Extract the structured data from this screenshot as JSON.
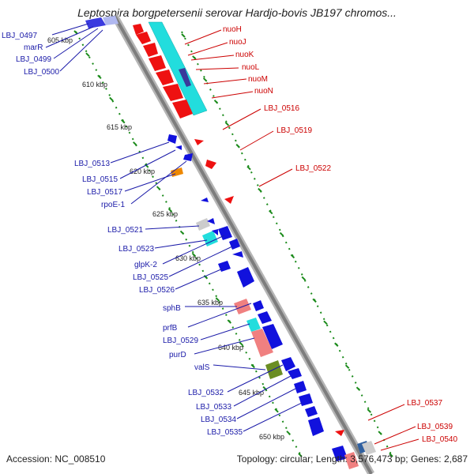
{
  "title": "Leptospira borgpetersenii serovar Hardjo-bovis JB197 chromos...",
  "accession": "Accession: NC_008510",
  "summary": "Topology: circular; Length: 3,576,473 bp; Genes: 2,687",
  "colors": {
    "backbone": "#8c8c8c",
    "label_blue": "#1a1aa8",
    "label_red": "#cc0000",
    "tick_green": "#1a8a1a",
    "feature_blue": "#1111dd",
    "feature_red": "#ee1111",
    "feature_cyan": "#22dddd",
    "feature_orange": "#ee8800",
    "feature_pink": "#f08080",
    "feature_olive": "#6b8e23",
    "feature_gray": "#cccccc"
  },
  "kbp_ticks": [
    "605 kbp",
    "610 kbp",
    "615 kbp",
    "620 kbp",
    "625 kbp",
    "630 kbp",
    "635 kbp",
    "640 kbp",
    "645 kbp",
    "650 kbp"
  ],
  "left_labels": [
    "LBJ_0497",
    "marR",
    "LBJ_0499",
    "LBJ_0500",
    "LBJ_0513",
    "LBJ_0515",
    "LBJ_0517",
    "rpoE-1",
    "LBJ_0521",
    "LBJ_0523",
    "glpK-2",
    "LBJ_0525",
    "LBJ_0526",
    "sphB",
    "prfB",
    "LBJ_0529",
    "purD",
    "valS",
    "LBJ_0532",
    "LBJ_0533",
    "LBJ_0534",
    "LBJ_0535"
  ],
  "right_labels": [
    "nuoH",
    "nuoJ",
    "nuoK",
    "nuoL",
    "nuoM",
    "nuoN",
    "LBJ_0516",
    "LBJ_0519",
    "LBJ_0522",
    "LBJ_0537",
    "LBJ_0539",
    "LBJ_0540"
  ]
}
